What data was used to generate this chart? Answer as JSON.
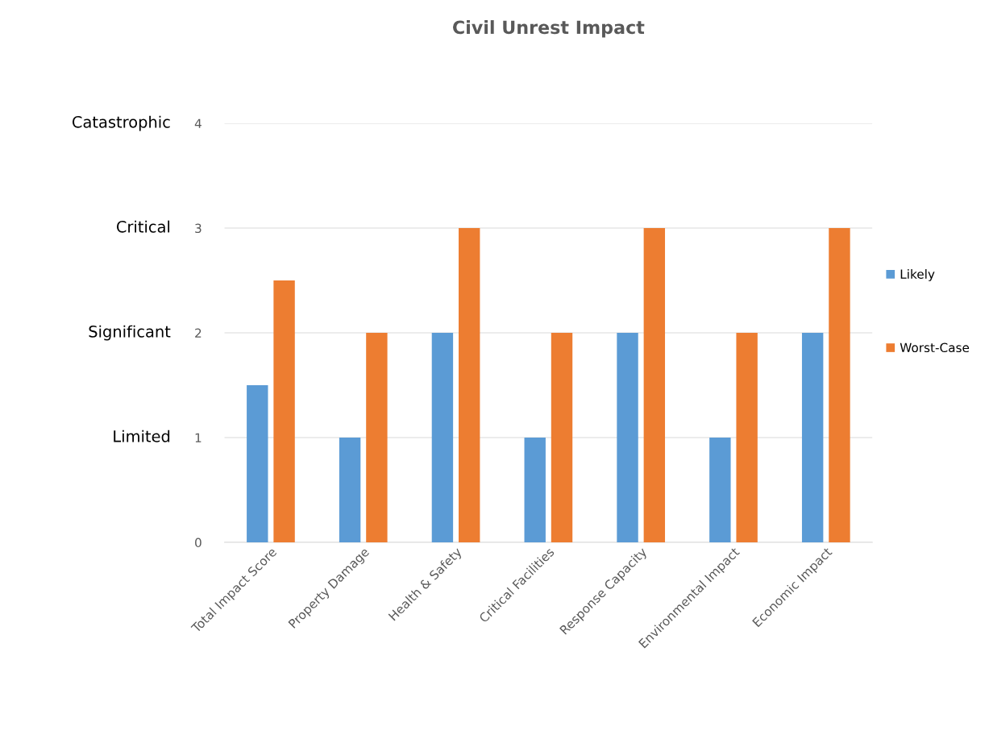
{
  "chart_data": {
    "type": "bar",
    "title": "Civil Unrest Impact",
    "categories": [
      "Total Impact Score",
      "Property Damage",
      "Health & Safety",
      "Critical Facilities",
      "Response Capacity",
      "Environmental Impact",
      "Economic Impact"
    ],
    "series": [
      {
        "name": "Likely",
        "color": "#5b9bd5",
        "values": [
          1.5,
          1,
          2,
          1,
          2,
          1,
          2
        ]
      },
      {
        "name": "Worst-Case",
        "color": "#ed7d31",
        "values": [
          2.5,
          2,
          3,
          2,
          3,
          2,
          3
        ]
      }
    ],
    "ylim": [
      0,
      4
    ],
    "yticks": [
      0,
      1,
      2,
      3,
      4
    ],
    "grid": "y",
    "legend": "right",
    "annotations": [
      "Limited",
      "Significant",
      "Critical",
      "Catastrophic"
    ]
  }
}
